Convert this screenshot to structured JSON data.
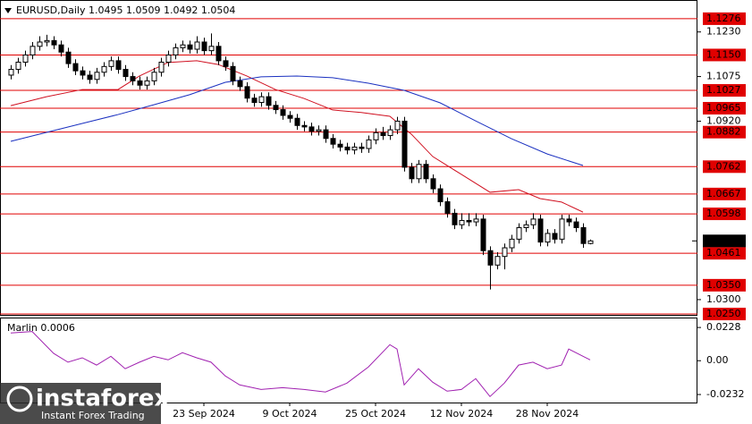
{
  "chart_data": {
    "type": "candlestick",
    "title": "EURUSD,Daily  1.0495 1.0509 1.0492 1.0504",
    "candles": [
      [
        1.108,
        1.1115,
        1.1065,
        1.11
      ],
      [
        1.11,
        1.114,
        1.1085,
        1.1125
      ],
      [
        1.1125,
        1.1165,
        1.111,
        1.115
      ],
      [
        1.115,
        1.1195,
        1.1135,
        1.118
      ],
      [
        1.118,
        1.1215,
        1.1165,
        1.1195
      ],
      [
        1.1195,
        1.122,
        1.118,
        1.12
      ],
      [
        1.12,
        1.1215,
        1.117,
        1.1185
      ],
      [
        1.1185,
        1.12,
        1.1145,
        1.116
      ],
      [
        1.116,
        1.1175,
        1.1105,
        1.112
      ],
      [
        1.112,
        1.1135,
        1.108,
        1.1095
      ],
      [
        1.1095,
        1.111,
        1.1065,
        1.108
      ],
      [
        1.108,
        1.1095,
        1.105,
        1.1065
      ],
      [
        1.1065,
        1.1105,
        1.105,
        1.109
      ],
      [
        1.109,
        1.1125,
        1.1075,
        1.111
      ],
      [
        1.111,
        1.1145,
        1.1095,
        1.113
      ],
      [
        1.113,
        1.1145,
        1.1085,
        1.11
      ],
      [
        1.11,
        1.1115,
        1.106,
        1.1075
      ],
      [
        1.1075,
        1.109,
        1.1045,
        1.106
      ],
      [
        1.106,
        1.1075,
        1.103,
        1.1045
      ],
      [
        1.1045,
        1.1075,
        1.103,
        1.106
      ],
      [
        1.106,
        1.1105,
        1.1045,
        1.109
      ],
      [
        1.109,
        1.114,
        1.1075,
        1.1125
      ],
      [
        1.1125,
        1.1165,
        1.111,
        1.115
      ],
      [
        1.115,
        1.119,
        1.1135,
        1.1175
      ],
      [
        1.1175,
        1.12,
        1.116,
        1.1185
      ],
      [
        1.1185,
        1.12,
        1.1155,
        1.117
      ],
      [
        1.117,
        1.1215,
        1.1155,
        1.1195
      ],
      [
        1.1195,
        1.121,
        1.115,
        1.1165
      ],
      [
        1.1165,
        1.1225,
        1.115,
        1.118
      ],
      [
        1.118,
        1.1195,
        1.1115,
        1.113
      ],
      [
        1.113,
        1.1145,
        1.1095,
        1.111
      ],
      [
        1.111,
        1.1125,
        1.1045,
        1.106
      ],
      [
        1.106,
        1.1075,
        1.1025,
        1.104
      ],
      [
        1.104,
        1.1055,
        1.0985,
        1.1
      ],
      [
        1.1,
        1.1015,
        1.097,
        1.0985
      ],
      [
        1.0985,
        1.102,
        1.097,
        1.1005
      ],
      [
        1.1005,
        1.102,
        1.096,
        1.0975
      ],
      [
        1.0975,
        1.099,
        1.0945,
        1.096
      ],
      [
        1.096,
        1.0975,
        1.0925,
        1.094
      ],
      [
        1.094,
        1.0955,
        1.0915,
        1.093
      ],
      [
        1.093,
        1.0945,
        1.089,
        1.0905
      ],
      [
        1.0905,
        1.092,
        1.0885,
        1.09
      ],
      [
        1.09,
        1.0915,
        1.087,
        1.0885
      ],
      [
        1.0885,
        1.0905,
        1.087,
        1.089
      ],
      [
        1.089,
        1.0905,
        1.0845,
        1.086
      ],
      [
        1.086,
        1.0875,
        1.0825,
        1.084
      ],
      [
        1.084,
        1.0855,
        1.0815,
        1.083
      ],
      [
        1.083,
        1.0845,
        1.0805,
        1.082
      ],
      [
        1.082,
        1.0845,
        1.0805,
        1.083
      ],
      [
        1.083,
        1.0845,
        1.081,
        1.0825
      ],
      [
        1.0825,
        1.087,
        1.081,
        1.0855
      ],
      [
        1.0855,
        1.0895,
        1.084,
        1.088
      ],
      [
        1.088,
        1.09,
        1.0855,
        1.087
      ],
      [
        1.087,
        1.0905,
        1.0855,
        1.089
      ],
      [
        1.089,
        1.0935,
        1.0875,
        1.092
      ],
      [
        1.092,
        1.0935,
        1.0745,
        1.076
      ],
      [
        1.076,
        1.0775,
        1.0705,
        1.072
      ],
      [
        1.072,
        1.0785,
        1.0705,
        1.077
      ],
      [
        1.077,
        1.0785,
        1.0705,
        1.072
      ],
      [
        1.072,
        1.0735,
        1.067,
        1.0685
      ],
      [
        1.0685,
        1.07,
        1.0625,
        1.064
      ],
      [
        1.064,
        1.0655,
        1.0585,
        1.06
      ],
      [
        1.06,
        1.0615,
        1.0545,
        1.056
      ],
      [
        1.056,
        1.06,
        1.0545,
        1.0575
      ],
      [
        1.0575,
        1.06,
        1.0555,
        1.057
      ],
      [
        1.057,
        1.06,
        1.0555,
        1.058
      ],
      [
        1.058,
        1.0595,
        1.0455,
        1.047
      ],
      [
        1.047,
        1.0485,
        1.0335,
        1.042
      ],
      [
        1.042,
        1.0465,
        1.0405,
        1.045
      ],
      [
        1.045,
        1.0495,
        1.0405,
        1.048
      ],
      [
        1.048,
        1.0525,
        1.0465,
        1.051
      ],
      [
        1.051,
        1.0565,
        1.0495,
        1.055
      ],
      [
        1.055,
        1.0575,
        1.0535,
        1.056
      ],
      [
        1.056,
        1.06,
        1.0545,
        1.058
      ],
      [
        1.058,
        1.0595,
        1.0485,
        1.05
      ],
      [
        1.05,
        1.0545,
        1.0485,
        1.053
      ],
      [
        1.053,
        1.0545,
        1.0495,
        1.051
      ],
      [
        1.051,
        1.0595,
        1.0495,
        1.058
      ],
      [
        1.058,
        1.0595,
        1.0555,
        1.057
      ],
      [
        1.057,
        1.0585,
        1.0535,
        1.055
      ],
      [
        1.055,
        1.0565,
        1.048,
        1.0495
      ],
      [
        1.0495,
        1.0509,
        1.0492,
        1.0504
      ]
    ],
    "bull_color": "#ffffff",
    "bear_color": "#000000",
    "xlim": [
      -1.5,
      96
    ],
    "xticks": [
      {
        "value": 27,
        "label": "23 Sep 2024"
      },
      {
        "value": 39,
        "label": "9 Oct 2024"
      },
      {
        "value": 51,
        "label": "25 Oct 2024"
      },
      {
        "value": 63,
        "label": "12 Nov 2024"
      },
      {
        "value": 75,
        "label": "28 Nov 2024"
      }
    ],
    "ylim": [
      1.0247,
      1.1341
    ],
    "yticks": [
      {
        "value": 1.123,
        "label": "1.1230"
      },
      {
        "value": 1.1075,
        "label": "1.1075"
      },
      {
        "value": 1.092,
        "label": "1.0920"
      },
      {
        "value": 1.03,
        "label": "1.0300"
      }
    ],
    "series": [
      {
        "color": "#d01020",
        "x": [
          0,
          5,
          10,
          15,
          18,
          22,
          26,
          29,
          33,
          37,
          41,
          45,
          49,
          53,
          56,
          59,
          63,
          67,
          71,
          74,
          77,
          80
        ],
        "values": [
          1.0974,
          1.1005,
          1.103,
          1.103,
          1.1077,
          1.1124,
          1.113,
          1.1117,
          1.1077,
          1.103,
          1.0999,
          1.0959,
          1.095,
          1.0937,
          1.0875,
          1.0797,
          1.0735,
          1.0673,
          1.0682,
          1.0651,
          1.0639,
          1.0604
        ]
      },
      {
        "color": "#1a30c0",
        "x": [
          0,
          5,
          10,
          15,
          20,
          25,
          30,
          35,
          40,
          45,
          50,
          55,
          60,
          65,
          70,
          75,
          80
        ],
        "values": [
          1.085,
          1.0881,
          1.0912,
          1.0943,
          1.0977,
          1.1012,
          1.1055,
          1.1074,
          1.1077,
          1.1071,
          1.1052,
          1.1027,
          1.0984,
          1.0921,
          1.0859,
          1.0806,
          1.0766
        ]
      }
    ],
    "levels": [
      {
        "value": 1.1276,
        "label": "1.1276"
      },
      {
        "value": 1.115,
        "label": "1.1150"
      },
      {
        "value": 1.1027,
        "label": "1.1027"
      },
      {
        "value": 1.0965,
        "label": "1.0965"
      },
      {
        "value": 1.0882,
        "label": "1.0882"
      },
      {
        "value": 1.0762,
        "label": "1.0762"
      },
      {
        "value": 1.0667,
        "label": "1.0667"
      },
      {
        "value": 1.0598,
        "label": "1.0598"
      },
      {
        "value": 1.0461,
        "label": "1.0461"
      },
      {
        "value": 1.035,
        "label": "1.0350"
      },
      {
        "value": 1.025,
        "label": "1.0250"
      }
    ],
    "level_color": "#e00000",
    "last_price": {
      "value": 1.0504,
      "label": "1.0504"
    },
    "indicator": {
      "title": "Marlin 0.0006",
      "color": "#a020b0",
      "ylim": [
        -0.0287,
        0.029
      ],
      "yticks": [
        0.0228,
        {
          "value": 0,
          "label": "0.00"
        },
        -0.0232
      ],
      "x": [
        0,
        3,
        6,
        8,
        10,
        12,
        14,
        16,
        18,
        20,
        22,
        24,
        26,
        28,
        30,
        32,
        35,
        38,
        41,
        44,
        47,
        50,
        53,
        54,
        55,
        57,
        59,
        61,
        63,
        65,
        67,
        69,
        71,
        73,
        75,
        77,
        78,
        80,
        81
      ],
      "values": [
        0.019,
        0.02,
        0.005,
        -0.001,
        0.002,
        -0.003,
        0.003,
        -0.0055,
        -0.001,
        0.003,
        0.0006,
        0.0055,
        0.002,
        -0.001,
        -0.0105,
        -0.0166,
        -0.0197,
        -0.0185,
        -0.0197,
        -0.0215,
        -0.0154,
        -0.0043,
        0.011,
        0.008,
        -0.0166,
        -0.0055,
        -0.0148,
        -0.0209,
        -0.0197,
        -0.0123,
        -0.0246,
        -0.0154,
        -0.003,
        -0.001,
        -0.0055,
        -0.003,
        0.008,
        0.003,
        0.0006
      ]
    },
    "watermark": {
      "brand": "instaforex",
      "tagline": "Instant Forex Trading"
    }
  }
}
